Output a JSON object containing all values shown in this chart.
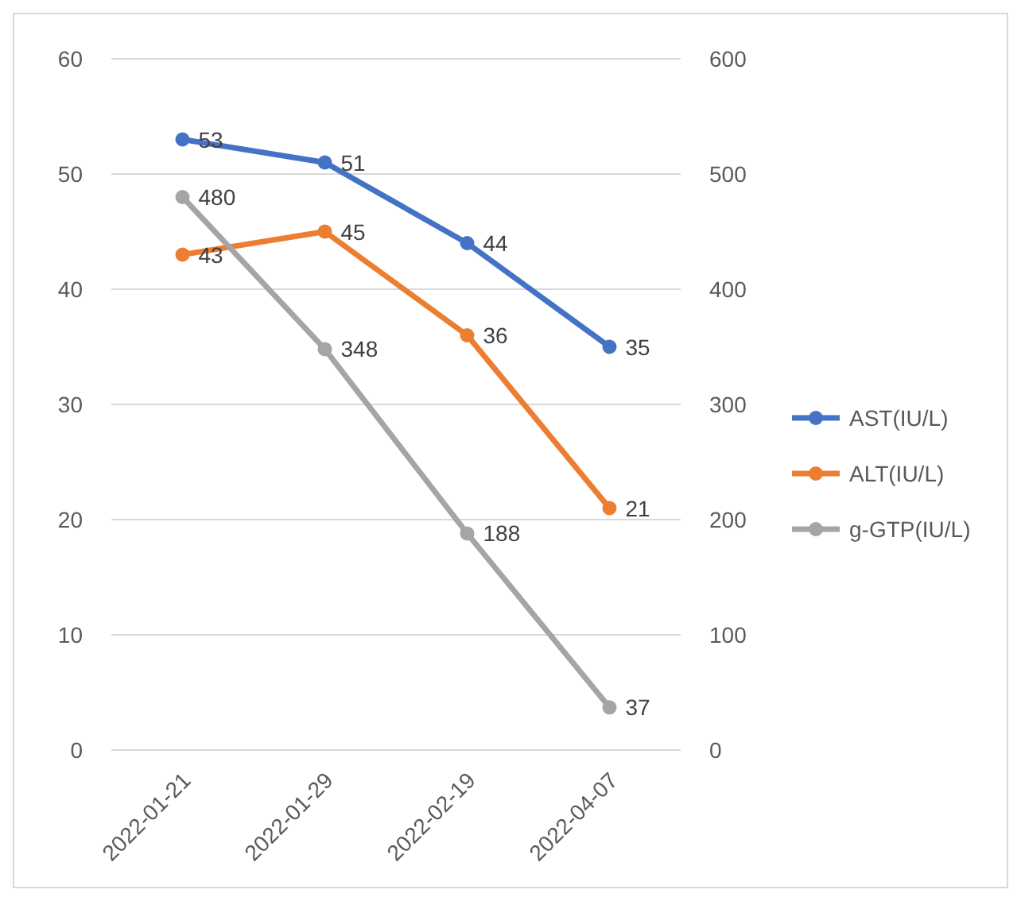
{
  "chart_data": {
    "type": "line",
    "categories": [
      "2022-01-21",
      "2022-01-29",
      "2022-02-19",
      "2022-04-07"
    ],
    "series": [
      {
        "name": "AST(IU/L)",
        "color": "#4472c4",
        "values": [
          53,
          51,
          44,
          35
        ]
      },
      {
        "name": "ALT(IU/L)",
        "color": "#ed7d31",
        "values": [
          43,
          45,
          36,
          21
        ]
      },
      {
        "name": "g-GTP(IU/L)",
        "color": "#a5a5a5",
        "values": [
          480,
          348,
          188,
          37
        ],
        "axis": "y2"
      }
    ],
    "ylim": [
      0,
      60
    ],
    "yticks": [
      0,
      10,
      20,
      30,
      40,
      50,
      60
    ],
    "y2lim": [
      0,
      600
    ],
    "y2ticks": [
      0,
      100,
      200,
      300,
      400,
      500,
      600
    ],
    "grid": "y",
    "legend": "right",
    "marker": "circle",
    "data_labels": true
  }
}
